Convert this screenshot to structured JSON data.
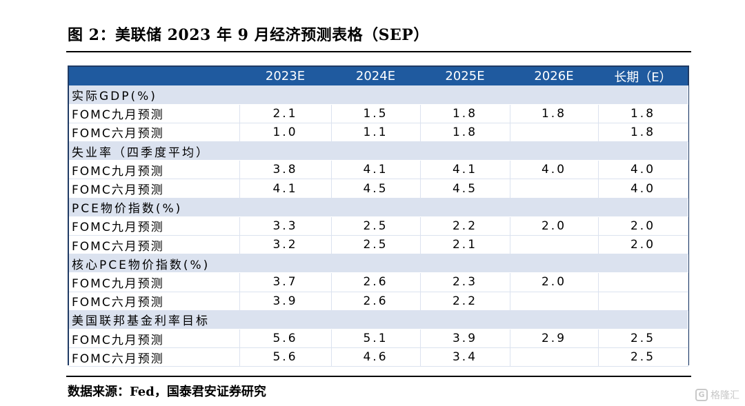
{
  "figure_title": "图 2：美联储 2023 年 9 月经济预测表格（SEP）",
  "table": {
    "header": [
      "",
      "2023E",
      "2024E",
      "2025E",
      "2026E",
      "长期（E）"
    ],
    "sections": [
      {
        "title": "实际GDP(%)",
        "rows": [
          {
            "label": "FOMC九月预测",
            "values": [
              "2.1",
              "1.5",
              "1.8",
              "1.8",
              "1.8"
            ]
          },
          {
            "label": "FOMC六月预测",
            "values": [
              "1.0",
              "1.1",
              "1.8",
              "",
              "1.8"
            ]
          }
        ]
      },
      {
        "title": "失业率（四季度平均）",
        "rows": [
          {
            "label": "FOMC九月预测",
            "values": [
              "3.8",
              "4.1",
              "4.1",
              "4.0",
              "4.0"
            ]
          },
          {
            "label": "FOMC六月预测",
            "values": [
              "4.1",
              "4.5",
              "4.5",
              "",
              "4.0"
            ]
          }
        ]
      },
      {
        "title": "PCE物价指数(%)",
        "rows": [
          {
            "label": "FOMC九月预测",
            "values": [
              "3.3",
              "2.5",
              "2.2",
              "2.0",
              "2.0"
            ]
          },
          {
            "label": "FOMC六月预测",
            "values": [
              "3.2",
              "2.5",
              "2.1",
              "",
              "2.0"
            ]
          }
        ]
      },
      {
        "title": "核心PCE物价指数(%)",
        "rows": [
          {
            "label": "FOMC九月预测",
            "values": [
              "3.7",
              "2.6",
              "2.3",
              "2.0",
              ""
            ]
          },
          {
            "label": "FOMC六月预测",
            "values": [
              "3.9",
              "2.6",
              "2.2",
              "",
              ""
            ]
          }
        ]
      },
      {
        "title": "美国联邦基金利率目标",
        "rows": [
          {
            "label": "FOMC九月预测",
            "values": [
              "5.6",
              "5.1",
              "3.9",
              "2.9",
              "2.5"
            ]
          },
          {
            "label": "FOMC六月预测",
            "values": [
              "5.6",
              "4.6",
              "3.4",
              "",
              "2.5"
            ]
          }
        ]
      }
    ]
  },
  "source": "数据来源：Fed，国泰君安证券研究",
  "watermark": {
    "logo": "G",
    "text": "格隆汇"
  },
  "colors": {
    "header_bg": "#1f5a9f",
    "section_bg": "#dbe2ef",
    "border": "#1f3a64"
  }
}
